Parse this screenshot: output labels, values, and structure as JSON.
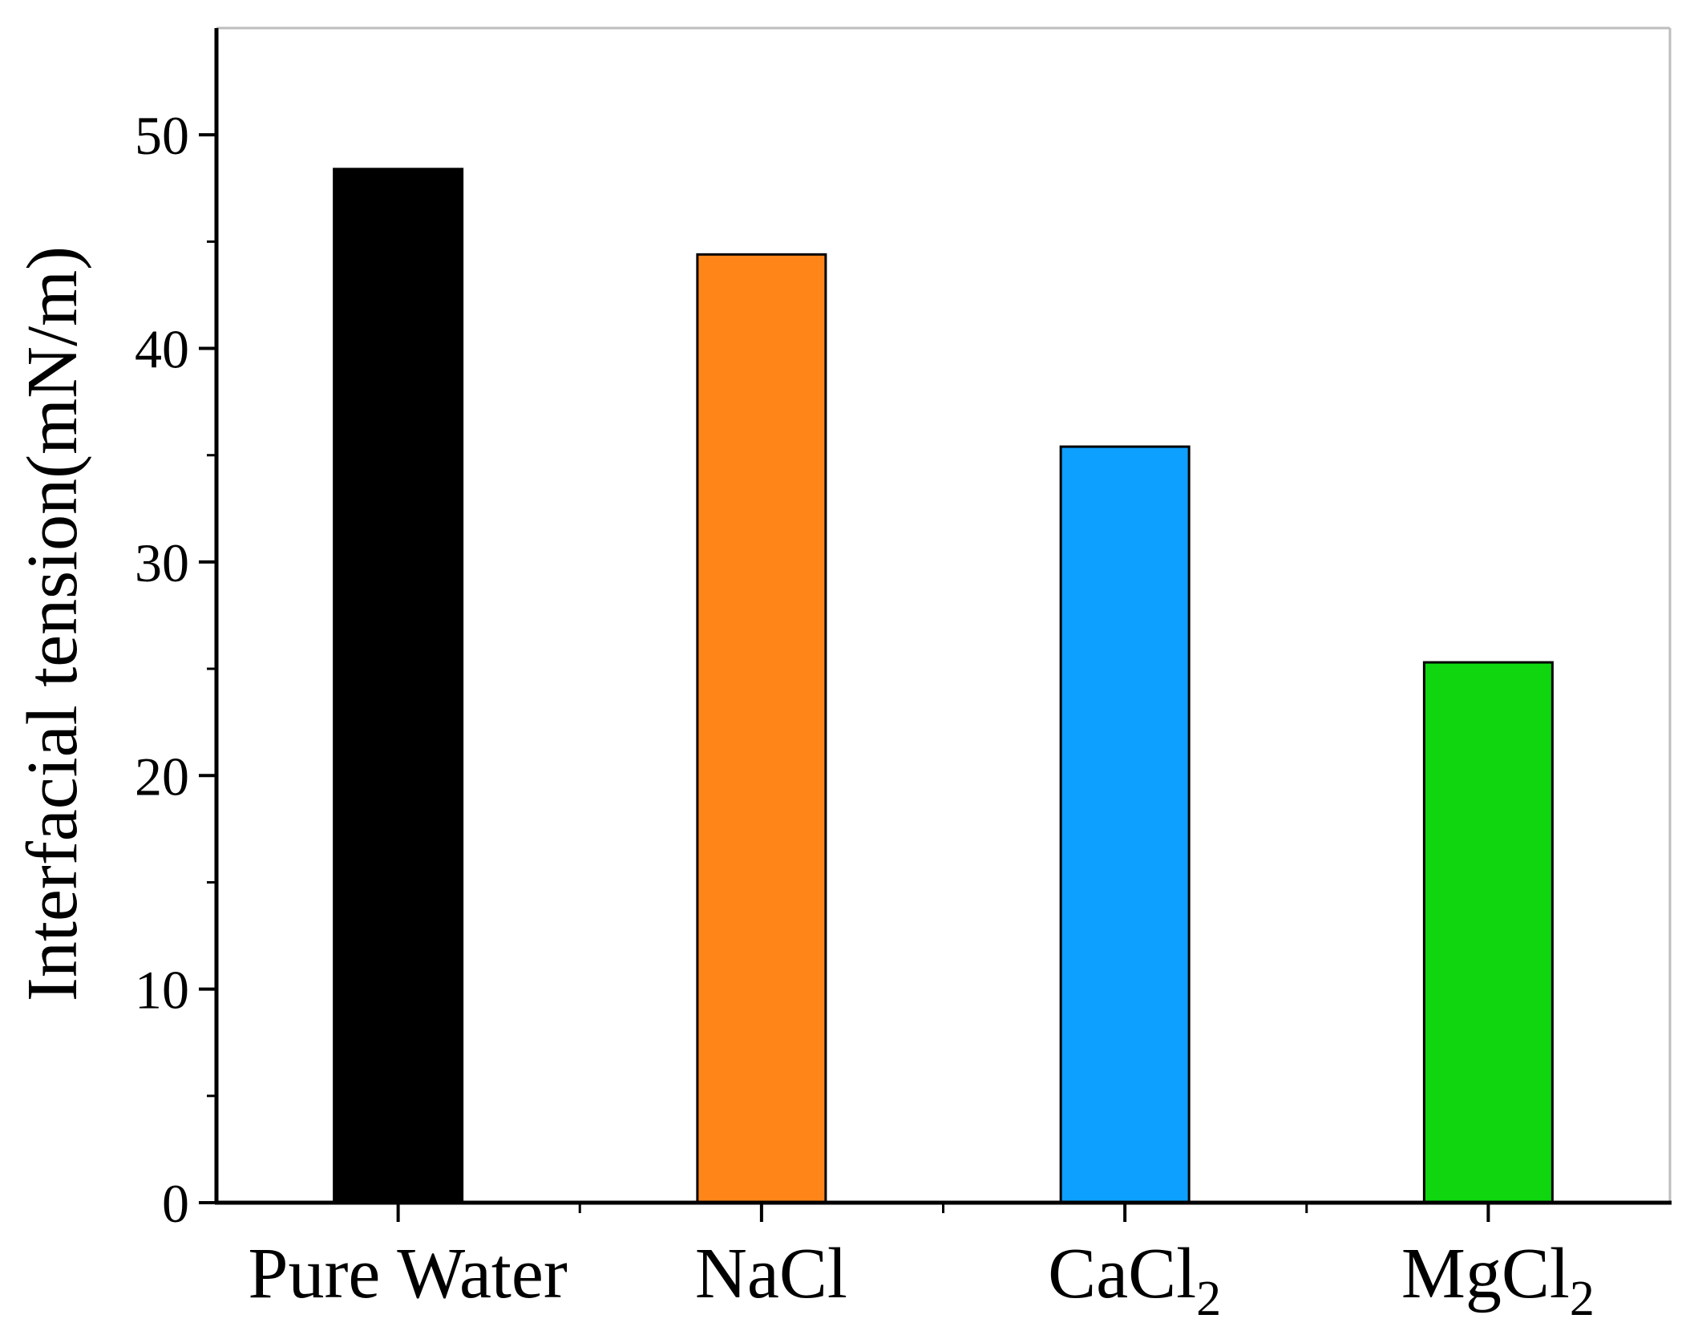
{
  "chart_data": {
    "type": "bar",
    "title": "",
    "xlabel": "",
    "ylabel": "Interfacial tension(mN/m)",
    "ylim": [
      0,
      55
    ],
    "yticks": [
      0,
      10,
      20,
      30,
      40,
      50
    ],
    "yticks_minor": [
      5,
      15,
      25,
      35,
      45
    ],
    "grid": false,
    "categories": [
      {
        "label": "Pure Water",
        "base": "Pure Water",
        "sub": ""
      },
      {
        "label": "NaCl",
        "base": "NaCl",
        "sub": ""
      },
      {
        "label": "CaCl2",
        "base": "CaCl",
        "sub": "2"
      },
      {
        "label": "MgCl2",
        "base": "MgCl",
        "sub": "2"
      }
    ],
    "values": [
      48.4,
      44.4,
      35.4,
      25.3
    ],
    "colors": [
      "#000000",
      "#ff8519",
      "#0da0ff",
      "#0fd60f"
    ]
  }
}
